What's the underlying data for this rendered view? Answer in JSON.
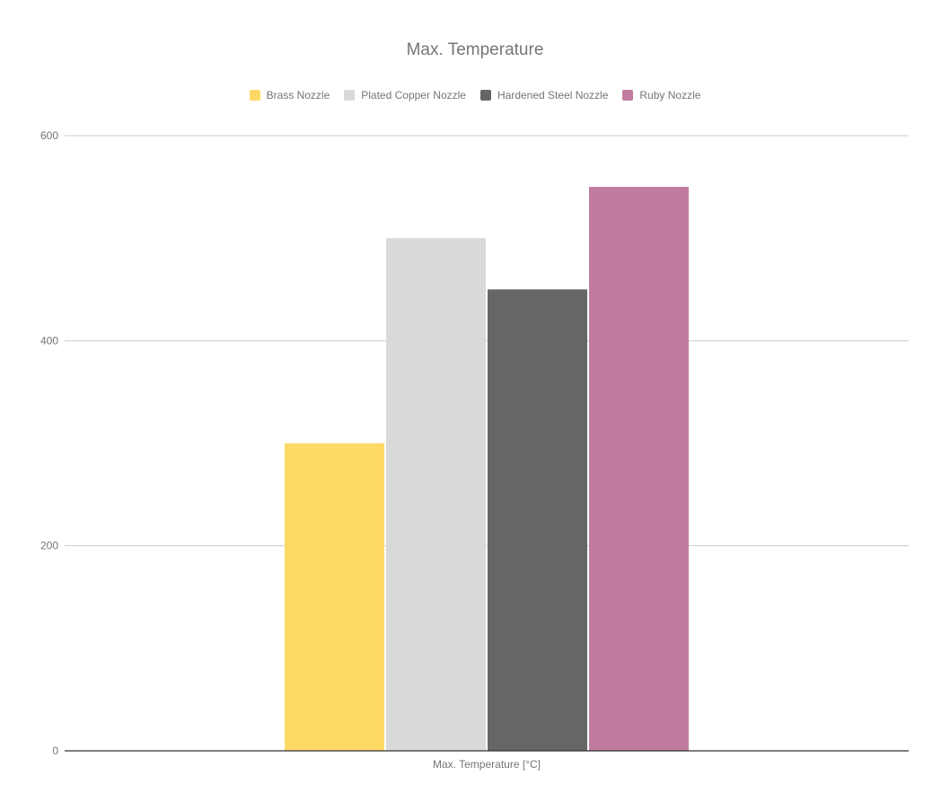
{
  "chart_data": {
    "type": "bar",
    "title": "Max. Temperature",
    "categories": [
      "Max. Temperature [°C]"
    ],
    "series": [
      {
        "name": "Brass Nozzle",
        "values": [
          300
        ],
        "color": "#ffd966"
      },
      {
        "name": "Plated Copper Nozzle",
        "values": [
          500
        ],
        "color": "#d9d9d9"
      },
      {
        "name": "Hardened Steel Nozzle",
        "values": [
          450
        ],
        "color": "#666666"
      },
      {
        "name": "Ruby Nozzle",
        "values": [
          550
        ],
        "color": "#c27ba0"
      }
    ],
    "xlabel": "",
    "ylabel": "",
    "ylim": [
      0,
      600
    ],
    "yticks": [
      0,
      200,
      400,
      600
    ],
    "grid": true,
    "legend": "top"
  }
}
